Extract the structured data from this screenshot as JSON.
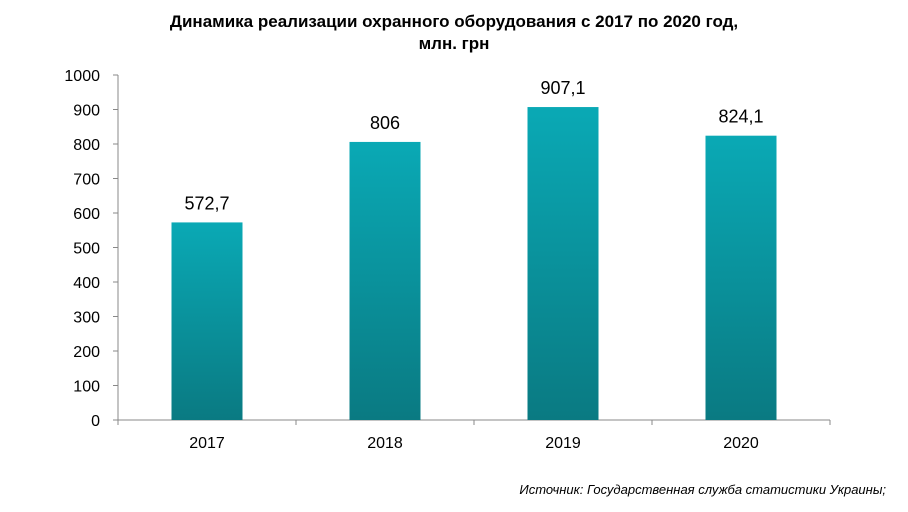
{
  "chart_data": {
    "type": "bar",
    "title_line1": "Динамика реализации охранного оборудования с 2017 по 2020 год,",
    "title_line2": "млн. грн",
    "categories": [
      "2017",
      "2018",
      "2019",
      "2020"
    ],
    "values": [
      572.7,
      806,
      907.1,
      824.1
    ],
    "data_labels": [
      "572,7",
      "806",
      "907,1",
      "824,1"
    ],
    "y_ticks": [
      "0",
      "100",
      "200",
      "300",
      "400",
      "500",
      "600",
      "700",
      "800",
      "900",
      "1000"
    ],
    "ylim": [
      0,
      1000
    ],
    "grid": false,
    "legend": "none",
    "bar_color_top": "#0aa9b5",
    "bar_color_bottom": "#0a7a82"
  },
  "source": "Источник: Государственная служба статистики Украины;"
}
